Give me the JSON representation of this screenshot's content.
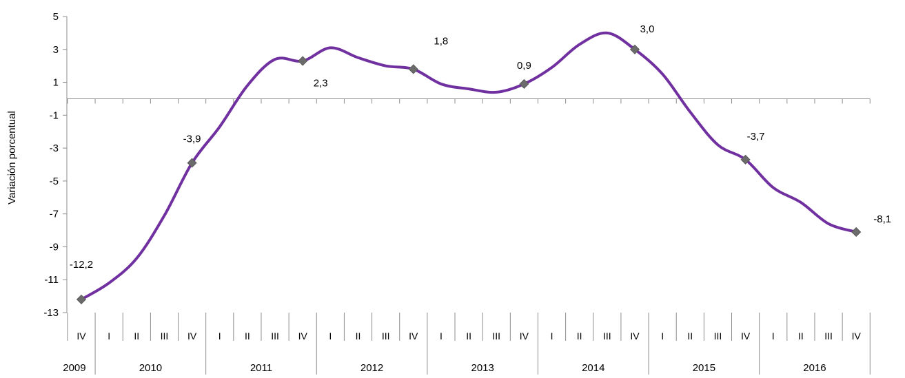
{
  "chart_data": {
    "type": "line",
    "title": "",
    "xlabel": "",
    "ylabel": "Variación porcentual",
    "ylim": [
      -13,
      5
    ],
    "yticks": [
      5,
      3,
      1,
      -1,
      -3,
      -5,
      -7,
      -9,
      -11,
      -13
    ],
    "ytick_labels": [
      "5",
      "3",
      "1",
      "-1",
      "-3",
      "-5",
      "-7",
      "-9",
      "-11",
      "-13"
    ],
    "grid": false,
    "legend": "none",
    "line_color": "#7030A0",
    "marker_color": "#6B6B6B",
    "quarters": [
      "IV",
      "I",
      "II",
      "III",
      "IV",
      "I",
      "II",
      "III",
      "IV",
      "I",
      "II",
      "III",
      "IV",
      "I",
      "II",
      "III",
      "IV",
      "I",
      "II",
      "III",
      "IV",
      "I",
      "II",
      "III",
      "IV",
      "I",
      "II",
      "III",
      "IV"
    ],
    "years": [
      {
        "label": "2009",
        "span": 1
      },
      {
        "label": "2010",
        "span": 4
      },
      {
        "label": "2011",
        "span": 4
      },
      {
        "label": "2012",
        "span": 4
      },
      {
        "label": "2013",
        "span": 4
      },
      {
        "label": "2014",
        "span": 4
      },
      {
        "label": "2015",
        "span": 4
      },
      {
        "label": "2016",
        "span": 4
      }
    ],
    "series": [
      {
        "values": [
          -12.2,
          -11.2,
          -9.7,
          -7.1,
          -3.9,
          -1.7,
          0.8,
          2.4,
          2.3,
          3.1,
          2.5,
          2.0,
          1.8,
          0.9,
          0.6,
          0.4,
          0.9,
          1.9,
          3.3,
          4.0,
          3.0,
          1.5,
          -0.8,
          -2.8,
          -3.7,
          -5.4,
          -6.3,
          -7.6,
          -8.1
        ]
      }
    ],
    "data_labels": [
      {
        "index": 0,
        "text": "-12,2"
      },
      {
        "index": 4,
        "text": "-3,9"
      },
      {
        "index": 8,
        "text": "2,3"
      },
      {
        "index": 12,
        "text": "1,8"
      },
      {
        "index": 16,
        "text": "0,9"
      },
      {
        "index": 20,
        "text": "3,0"
      },
      {
        "index": 24,
        "text": "-3,7"
      },
      {
        "index": 28,
        "text": "-8,1"
      }
    ]
  }
}
